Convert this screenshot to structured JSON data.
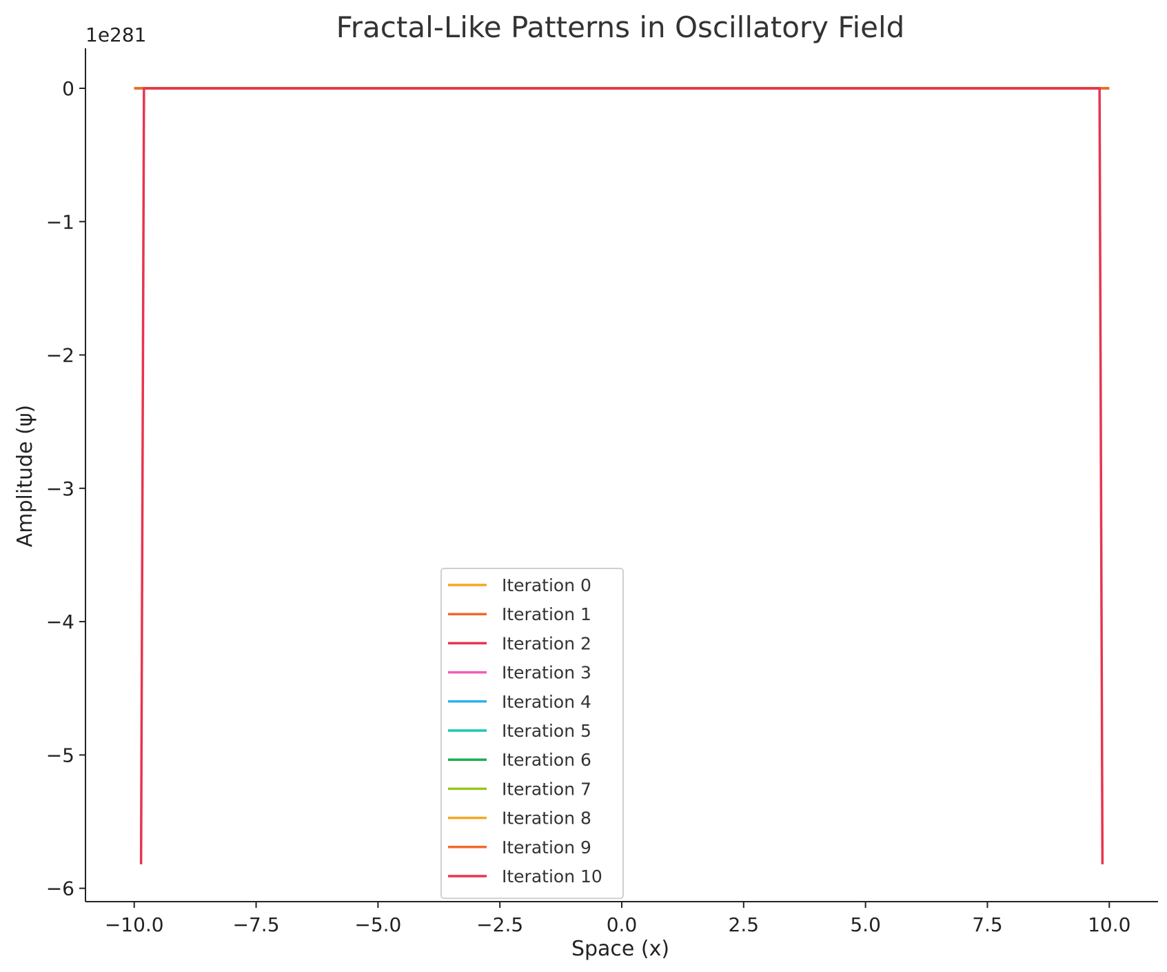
{
  "chart_data": {
    "type": "line",
    "title": "Fractal-Like Patterns in Oscillatory Field",
    "xlabel": "Space (x)",
    "ylabel": "Amplitude (ψ)",
    "y_offset_text": "1e281",
    "y_scale_exponent": 281,
    "xlim": [
      -11.0,
      11.0
    ],
    "ylim": [
      -6.1,
      0.3
    ],
    "x_ticks": [
      -10.0,
      -7.5,
      -5.0,
      -2.5,
      0.0,
      2.5,
      5.0,
      7.5,
      10.0
    ],
    "x_tick_labels": [
      "−10.0",
      "−7.5",
      "−5.0",
      "−2.5",
      "0.0",
      "2.5",
      "5.0",
      "7.5",
      "10.0"
    ],
    "y_ticks": [
      0,
      -1,
      -2,
      -3,
      -4,
      -5,
      -6
    ],
    "y_tick_labels": [
      "0",
      "−1",
      "−2",
      "−3",
      "−4",
      "−5",
      "−6"
    ],
    "grid": false,
    "legend_position": "lower center",
    "series": [
      {
        "name": "Iteration 0",
        "color": "#f5a623",
        "x": [
          -10.0,
          10.0
        ],
        "y": [
          0,
          0
        ]
      },
      {
        "name": "Iteration 1",
        "color": "#f06a2a",
        "x": [
          -10.0,
          10.0
        ],
        "y": [
          0,
          0
        ]
      },
      {
        "name": "Iteration 2",
        "color": "#e8344e",
        "x": [
          -10.0,
          10.0
        ],
        "y": [
          0,
          0
        ]
      },
      {
        "name": "Iteration 3",
        "color": "#f25bbd",
        "x": [
          -10.0,
          10.0
        ],
        "y": [
          0,
          0
        ]
      },
      {
        "name": "Iteration 4",
        "color": "#2fb0ec",
        "x": [
          -10.0,
          10.0
        ],
        "y": [
          0,
          0
        ]
      },
      {
        "name": "Iteration 5",
        "color": "#18c7b4",
        "x": [
          -10.0,
          10.0
        ],
        "y": [
          0,
          0
        ]
      },
      {
        "name": "Iteration 6",
        "color": "#1aae4e",
        "x": [
          -10.0,
          10.0
        ],
        "y": [
          0,
          0
        ]
      },
      {
        "name": "Iteration 7",
        "color": "#9ac420",
        "x": [
          -10.0,
          10.0
        ],
        "y": [
          0,
          0
        ]
      },
      {
        "name": "Iteration 8",
        "color": "#f5a623",
        "x": [
          -10.0,
          10.0
        ],
        "y": [
          0,
          0
        ]
      },
      {
        "name": "Iteration 9",
        "color": "#f06a2a",
        "x": [
          -10.0,
          10.0
        ],
        "y": [
          0,
          0
        ]
      },
      {
        "name": "Iteration 10",
        "color": "#e8344e",
        "x": [
          -9.86,
          -9.8,
          9.8,
          9.86
        ],
        "y": [
          -5.82,
          0,
          0,
          -5.82
        ]
      }
    ]
  }
}
